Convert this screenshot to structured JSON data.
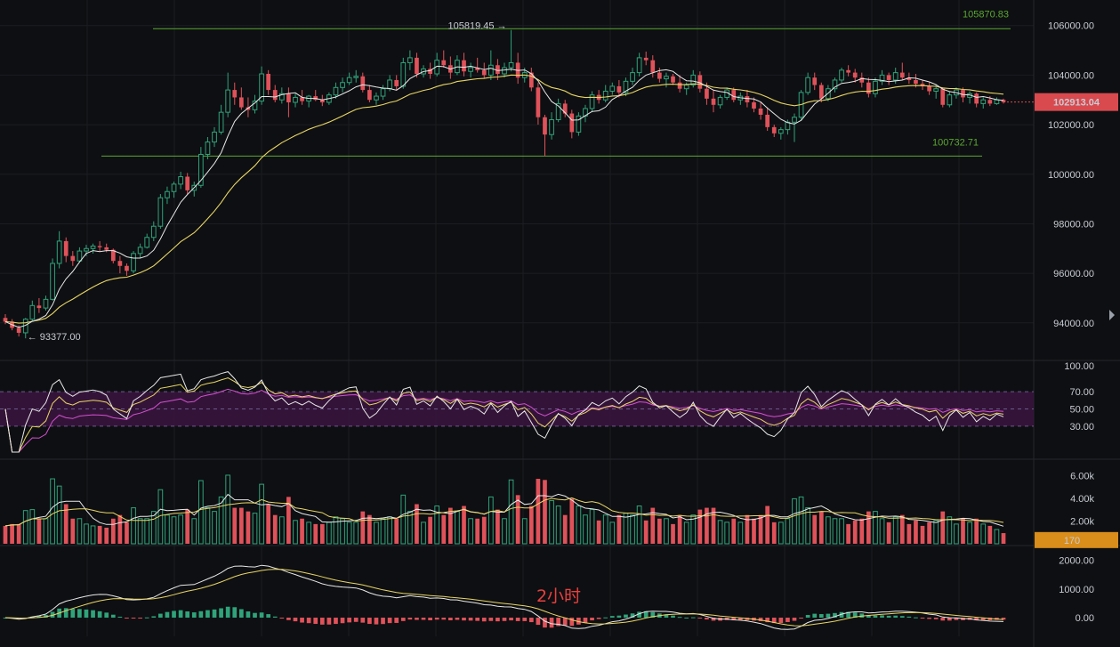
{
  "chart_data": {
    "type": "candlestick",
    "timeframe_label": "2小时",
    "colors": {
      "up": "#2fa37a",
      "down": "#e0525a",
      "ma_fast": "#e8e8e8",
      "ma_slow": "#e9d664",
      "macd_signal": "#e9d664",
      "rsi_slow": "#d44fd0",
      "level_lines": "#5aa832",
      "rsi_band": "#3a1540",
      "current_tag": "#d94a4f",
      "volume_tag": "#d98d1a"
    },
    "price_axis": {
      "ticks": [
        "106000.00",
        "104000.00",
        "102000.00",
        "100000.00",
        "98000.00",
        "96000.00",
        "94000.00"
      ],
      "ylim": [
        92700,
        106600
      ]
    },
    "levels": {
      "high": {
        "value": 105870.83,
        "label": "105870.83"
      },
      "low": {
        "value": 100732.71,
        "label": "100732.71"
      }
    },
    "markers": {
      "max": {
        "value": 105819.45,
        "label": "105819.45 →"
      },
      "min": {
        "value": 93377.0,
        "label": "← 93377.00"
      }
    },
    "current_price": {
      "value": 102913.04,
      "label": "102913.04"
    },
    "ohlc": [
      [
        94200,
        94350,
        93950,
        94050
      ],
      [
        94050,
        94150,
        93700,
        93800
      ],
      [
        93800,
        93900,
        93450,
        93600
      ],
      [
        93600,
        94200,
        93377,
        94150
      ],
      [
        94150,
        94900,
        94050,
        94700
      ],
      [
        94700,
        95000,
        94400,
        94600
      ],
      [
        94600,
        95100,
        94500,
        94950
      ],
      [
        94950,
        96600,
        94900,
        96400
      ],
      [
        96400,
        97700,
        96200,
        97300
      ],
      [
        97300,
        97450,
        96450,
        96700
      ],
      [
        96700,
        96900,
        96300,
        96500
      ],
      [
        96500,
        97050,
        96450,
        96900
      ],
      [
        96900,
        97150,
        96700,
        97000
      ],
      [
        97000,
        97200,
        96800,
        97100
      ],
      [
        97100,
        97300,
        96900,
        97050
      ],
      [
        97050,
        97200,
        96850,
        96950
      ],
      [
        96950,
        97000,
        96400,
        96500
      ],
      [
        96500,
        96700,
        96000,
        96300
      ],
      [
        96300,
        96400,
        95900,
        96100
      ],
      [
        96100,
        96900,
        96000,
        96800
      ],
      [
        96800,
        97200,
        96600,
        97050
      ],
      [
        97050,
        97600,
        97000,
        97450
      ],
      [
        97450,
        98100,
        97300,
        97900
      ],
      [
        97900,
        99200,
        97800,
        99050
      ],
      [
        99050,
        99500,
        98800,
        99300
      ],
      [
        99300,
        99700,
        99050,
        99600
      ],
      [
        99600,
        100100,
        99400,
        99900
      ],
      [
        99900,
        100050,
        99200,
        99350
      ],
      [
        99350,
        99700,
        99100,
        99550
      ],
      [
        99550,
        101100,
        99450,
        100800
      ],
      [
        100800,
        101500,
        100600,
        101300
      ],
      [
        101300,
        101900,
        101100,
        101700
      ],
      [
        101700,
        102800,
        101600,
        102500
      ],
      [
        102500,
        104100,
        102300,
        103400
      ],
      [
        103400,
        103700,
        102800,
        103100
      ],
      [
        103100,
        103500,
        102600,
        102700
      ],
      [
        102700,
        103100,
        102300,
        102600
      ],
      [
        102600,
        103200,
        102450,
        102950
      ],
      [
        102950,
        104350,
        102800,
        104050
      ],
      [
        104050,
        104200,
        103200,
        103400
      ],
      [
        103400,
        103600,
        102900,
        103000
      ],
      [
        103000,
        103500,
        102850,
        103250
      ],
      [
        103250,
        103500,
        102300,
        102900
      ],
      [
        102900,
        103250,
        102700,
        103100
      ],
      [
        103100,
        103400,
        102800,
        102950
      ],
      [
        102950,
        103200,
        102700,
        103150
      ],
      [
        103150,
        103400,
        102950,
        103000
      ],
      [
        103000,
        103200,
        102750,
        102900
      ],
      [
        102900,
        103300,
        102800,
        103200
      ],
      [
        103200,
        103700,
        103050,
        103500
      ],
      [
        103500,
        103900,
        103300,
        103700
      ],
      [
        103700,
        104100,
        103600,
        103900
      ],
      [
        103900,
        104200,
        103700,
        103950
      ],
      [
        103950,
        104100,
        103300,
        103400
      ],
      [
        103400,
        103600,
        102900,
        103000
      ],
      [
        103000,
        103300,
        102800,
        103150
      ],
      [
        103150,
        103600,
        103000,
        103450
      ],
      [
        103450,
        104000,
        103350,
        103800
      ],
      [
        103800,
        104000,
        103400,
        103550
      ],
      [
        103550,
        104700,
        103450,
        104500
      ],
      [
        104500,
        105000,
        104200,
        104700
      ],
      [
        104700,
        104900,
        103900,
        104050
      ],
      [
        104050,
        104400,
        103900,
        104250
      ],
      [
        104250,
        104500,
        103850,
        104050
      ],
      [
        104050,
        104900,
        103950,
        104600
      ],
      [
        104600,
        105000,
        104300,
        104400
      ],
      [
        104400,
        104750,
        103850,
        104100
      ],
      [
        104100,
        104800,
        104000,
        104600
      ],
      [
        104600,
        104900,
        103950,
        104150
      ],
      [
        104150,
        104500,
        103900,
        104300
      ],
      [
        104300,
        104700,
        104100,
        104200
      ],
      [
        104200,
        104500,
        103850,
        104000
      ],
      [
        104000,
        105000,
        103800,
        104400
      ],
      [
        104400,
        104650,
        103800,
        104050
      ],
      [
        104050,
        104500,
        103900,
        104300
      ],
      [
        104300,
        105819,
        104150,
        104500
      ],
      [
        104500,
        104900,
        103650,
        103900
      ],
      [
        103900,
        104300,
        103700,
        104100
      ],
      [
        104100,
        104300,
        103350,
        103500
      ],
      [
        103500,
        103700,
        102000,
        102300
      ],
      [
        102300,
        102400,
        100732,
        101600
      ],
      [
        101600,
        102500,
        101400,
        102200
      ],
      [
        102200,
        103050,
        102100,
        102850
      ],
      [
        102850,
        103000,
        102300,
        102450
      ],
      [
        102450,
        102600,
        101450,
        101700
      ],
      [
        101700,
        102500,
        101550,
        102350
      ],
      [
        102350,
        102800,
        102100,
        102650
      ],
      [
        102650,
        103350,
        102500,
        103200
      ],
      [
        103200,
        103400,
        102850,
        103000
      ],
      [
        103000,
        103600,
        102900,
        103350
      ],
      [
        103350,
        103700,
        103200,
        103550
      ],
      [
        103550,
        103800,
        103100,
        103300
      ],
      [
        103300,
        103900,
        103150,
        103750
      ],
      [
        103750,
        104300,
        103600,
        104100
      ],
      [
        104100,
        104900,
        103950,
        104700
      ],
      [
        104700,
        104950,
        104400,
        104600
      ],
      [
        104600,
        104800,
        103900,
        104100
      ],
      [
        104100,
        104300,
        103700,
        103850
      ],
      [
        103850,
        104100,
        103500,
        103950
      ],
      [
        103950,
        104050,
        103600,
        103700
      ],
      [
        103700,
        104000,
        103300,
        103450
      ],
      [
        103450,
        103700,
        103200,
        103600
      ],
      [
        103600,
        104200,
        103500,
        104000
      ],
      [
        104000,
        104150,
        103300,
        103450
      ],
      [
        103450,
        103700,
        102800,
        103050
      ],
      [
        103050,
        103400,
        102500,
        102800
      ],
      [
        102800,
        103200,
        102650,
        103100
      ],
      [
        103100,
        103500,
        103000,
        103400
      ],
      [
        103400,
        103500,
        102900,
        103000
      ],
      [
        103000,
        103300,
        102800,
        103150
      ],
      [
        103150,
        103400,
        102700,
        102900
      ],
      [
        102900,
        103100,
        102500,
        102650
      ],
      [
        102650,
        102900,
        102200,
        102400
      ],
      [
        102400,
        102700,
        101750,
        101900
      ],
      [
        101900,
        102000,
        101500,
        101650
      ],
      [
        101650,
        101900,
        101400,
        101800
      ],
      [
        101800,
        102200,
        101600,
        102100
      ],
      [
        102100,
        102450,
        101300,
        102300
      ],
      [
        102300,
        103400,
        102200,
        103300
      ],
      [
        103300,
        104100,
        103200,
        103900
      ],
      [
        103900,
        104100,
        103400,
        103600
      ],
      [
        103600,
        103700,
        102900,
        103050
      ],
      [
        103050,
        103600,
        102950,
        103450
      ],
      [
        103450,
        103900,
        103300,
        103800
      ],
      [
        103800,
        104300,
        103700,
        104200
      ],
      [
        104200,
        104400,
        103950,
        104100
      ],
      [
        104100,
        104250,
        103700,
        103900
      ],
      [
        103900,
        104100,
        103500,
        103700
      ],
      [
        103700,
        103900,
        103100,
        103250
      ],
      [
        103250,
        103900,
        103100,
        103750
      ],
      [
        103750,
        104200,
        103600,
        104000
      ],
      [
        104000,
        104100,
        103600,
        103800
      ],
      [
        103800,
        104300,
        103650,
        104100
      ],
      [
        104100,
        104500,
        103800,
        103900
      ],
      [
        103900,
        104100,
        103650,
        103800
      ],
      [
        103800,
        104050,
        103500,
        103650
      ],
      [
        103650,
        103800,
        103400,
        103550
      ],
      [
        103550,
        103700,
        103200,
        103350
      ],
      [
        103350,
        103600,
        103050,
        103450
      ],
      [
        103450,
        103500,
        102700,
        102800
      ],
      [
        102800,
        103350,
        102700,
        103200
      ],
      [
        103200,
        103500,
        103050,
        103400
      ],
      [
        103400,
        103500,
        102900,
        103100
      ],
      [
        103100,
        103350,
        102850,
        103250
      ],
      [
        103250,
        103300,
        102700,
        102850
      ],
      [
        102850,
        103100,
        102650,
        103000
      ],
      [
        103000,
        103150,
        102750,
        102850
      ],
      [
        102850,
        103100,
        102800,
        103000
      ],
      [
        103000,
        103050,
        102850,
        102913
      ]
    ],
    "rsi": {
      "ticks": [
        "100.00",
        "70.00",
        "50.00",
        "30.00"
      ],
      "ylim": [
        0,
        100
      ],
      "band": [
        30,
        70
      ]
    },
    "volume": {
      "ticks": [
        "6.00k",
        "4.00k",
        "2.00k"
      ],
      "ylim": [
        0,
        7000
      ],
      "current_label": "170"
    },
    "macd": {
      "ticks": [
        "2000.00",
        "1000.00",
        "0.00"
      ],
      "ylim": [
        -650,
        2450
      ]
    }
  }
}
